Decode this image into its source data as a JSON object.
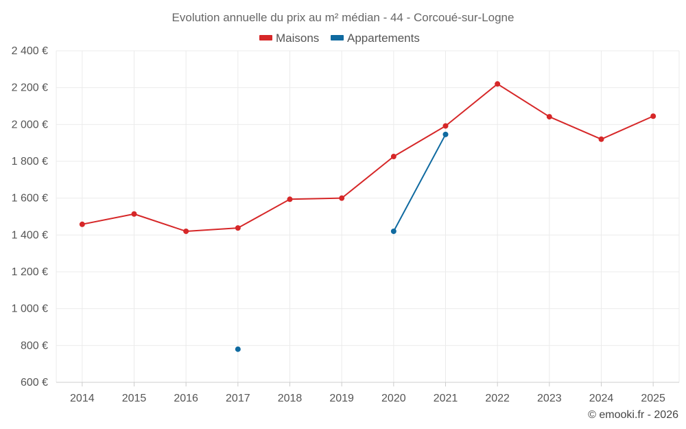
{
  "chart_data": {
    "type": "line",
    "title": "Evolution annuelle du prix au m² médian - 44 - Corcoué-sur-Logne",
    "categories": [
      "2014",
      "2015",
      "2016",
      "2017",
      "2018",
      "2019",
      "2020",
      "2021",
      "2022",
      "2023",
      "2024",
      "2025"
    ],
    "ylim": [
      600,
      2400
    ],
    "yticks": [
      600,
      800,
      1000,
      1200,
      1400,
      1600,
      1800,
      2000,
      2200,
      2400
    ],
    "ytick_labels": [
      "600 €",
      "800 €",
      "1 000 €",
      "1 200 €",
      "1 400 €",
      "1 600 €",
      "1 800 €",
      "2 000 €",
      "2 200 €",
      "2 400 €"
    ],
    "xlabel": "",
    "ylabel": "",
    "grid": true,
    "legend_position": "top-center",
    "series": [
      {
        "name": "Maisons",
        "color": "#d62728",
        "values": [
          1458,
          1514,
          1420,
          1438,
          1594,
          1600,
          1826,
          1992,
          2220,
          2042,
          1920,
          2045
        ]
      },
      {
        "name": "Appartements",
        "color": "#0f6aa0",
        "values": [
          null,
          null,
          null,
          780,
          null,
          null,
          1420,
          1946,
          null,
          null,
          null,
          null
        ]
      }
    ]
  },
  "credit": "© emooki.fr - 2026"
}
